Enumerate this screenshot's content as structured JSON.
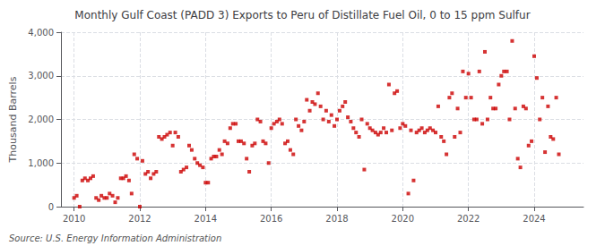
{
  "chart_data": {
    "type": "scatter",
    "title": "Monthly Gulf Coast (PADD 3) Exports to Peru of Distillate Fuel Oil, 0 to 15 ppm Sulfur",
    "ylabel": "Thousand Barrels",
    "annotations": [
      "Source: U.S. Energy Information Administration"
    ],
    "color": "#cc0000",
    "marker": "square",
    "grid": true,
    "xlim": [
      2009.6,
      2025.5
    ],
    "xticks": [
      2010,
      2012,
      2014,
      2016,
      2018,
      2020,
      2022,
      2024
    ],
    "ylim": [
      0,
      4000
    ],
    "yticks": [
      0,
      {
        "value": 1000,
        "label": "1,000"
      },
      {
        "value": 2000,
        "label": "2,000"
      },
      {
        "value": 3000,
        "label": "3,000"
      },
      {
        "value": 4000,
        "label": "4,000"
      }
    ],
    "x": [
      2010.0,
      2010.08,
      2010.17,
      2010.25,
      2010.33,
      2010.42,
      2010.5,
      2010.58,
      2010.67,
      2010.75,
      2010.83,
      2010.92,
      2011.0,
      2011.08,
      2011.17,
      2011.25,
      2011.33,
      2011.42,
      2011.5,
      2011.58,
      2011.67,
      2011.75,
      2011.83,
      2011.92,
      2012.0,
      2012.08,
      2012.17,
      2012.25,
      2012.33,
      2012.42,
      2012.5,
      2012.58,
      2012.67,
      2012.75,
      2012.83,
      2012.92,
      2013.0,
      2013.08,
      2013.17,
      2013.25,
      2013.33,
      2013.42,
      2013.5,
      2013.58,
      2013.67,
      2013.75,
      2013.83,
      2013.92,
      2014.0,
      2014.08,
      2014.17,
      2014.25,
      2014.33,
      2014.42,
      2014.5,
      2014.58,
      2014.67,
      2014.75,
      2014.83,
      2014.92,
      2015.0,
      2015.08,
      2015.17,
      2015.25,
      2015.33,
      2015.42,
      2015.5,
      2015.58,
      2015.67,
      2015.75,
      2015.83,
      2015.92,
      2016.0,
      2016.08,
      2016.17,
      2016.25,
      2016.33,
      2016.42,
      2016.5,
      2016.58,
      2016.67,
      2016.75,
      2016.83,
      2016.92,
      2017.0,
      2017.08,
      2017.17,
      2017.25,
      2017.33,
      2017.42,
      2017.5,
      2017.58,
      2017.67,
      2017.75,
      2017.83,
      2017.92,
      2018.0,
      2018.08,
      2018.17,
      2018.25,
      2018.33,
      2018.42,
      2018.5,
      2018.58,
      2018.67,
      2018.75,
      2018.83,
      2018.92,
      2019.0,
      2019.08,
      2019.17,
      2019.25,
      2019.33,
      2019.42,
      2019.5,
      2019.58,
      2019.67,
      2019.75,
      2019.83,
      2019.92,
      2020.0,
      2020.08,
      2020.17,
      2020.25,
      2020.33,
      2020.42,
      2020.5,
      2020.58,
      2020.67,
      2020.75,
      2020.83,
      2020.92,
      2021.0,
      2021.08,
      2021.17,
      2021.25,
      2021.33,
      2021.42,
      2021.5,
      2021.58,
      2021.67,
      2021.75,
      2021.83,
      2021.92,
      2022.0,
      2022.08,
      2022.17,
      2022.25,
      2022.33,
      2022.42,
      2022.5,
      2022.58,
      2022.67,
      2022.75,
      2022.83,
      2022.92,
      2023.0,
      2023.08,
      2023.17,
      2023.25,
      2023.33,
      2023.42,
      2023.5,
      2023.58,
      2023.67,
      2023.75,
      2023.83,
      2023.92,
      2024.0,
      2024.08,
      2024.17,
      2024.25,
      2024.33,
      2024.42,
      2024.5,
      2024.58,
      2024.67,
      2024.75
    ],
    "values": [
      200,
      250,
      0,
      600,
      650,
      600,
      650,
      700,
      200,
      150,
      250,
      200,
      200,
      300,
      250,
      100,
      200,
      650,
      650,
      700,
      600,
      300,
      1200,
      1100,
      0,
      1050,
      750,
      800,
      650,
      750,
      800,
      1600,
      1550,
      1600,
      1650,
      1700,
      1400,
      1700,
      1600,
      800,
      850,
      900,
      1400,
      1300,
      1100,
      1000,
      950,
      900,
      550,
      550,
      1100,
      1150,
      1150,
      1300,
      1200,
      1500,
      1450,
      1800,
      1900,
      1900,
      1500,
      1500,
      1450,
      1100,
      800,
      1400,
      1450,
      2000,
      1950,
      1500,
      1450,
      1000,
      1800,
      1900,
      1950,
      2000,
      1900,
      1450,
      1500,
      1300,
      1200,
      2000,
      1850,
      1750,
      1950,
      2450,
      2200,
      2400,
      2350,
      2600,
      2300,
      2000,
      2200,
      1950,
      2100,
      1850,
      2000,
      2200,
      2300,
      2400,
      2050,
      1950,
      1800,
      1700,
      1600,
      2000,
      850,
      1900,
      1800,
      1750,
      1700,
      1650,
      1700,
      1800,
      1700,
      2800,
      1750,
      2600,
      2650,
      1800,
      1900,
      1850,
      300,
      1750,
      600,
      1700,
      1750,
      1800,
      1700,
      1750,
      1800,
      1750,
      1700,
      2300,
      1600,
      1500,
      1200,
      2500,
      2600,
      1600,
      2250,
      1700,
      3100,
      2500,
      3050,
      2500,
      2000,
      2000,
      3100,
      1900,
      3550,
      2000,
      2500,
      2250,
      2250,
      2800,
      3000,
      3100,
      3100,
      2000,
      3800,
      2250,
      1100,
      900,
      2300,
      2250,
      1400,
      1500,
      3450,
      2950,
      2000,
      2500,
      1250,
      2300,
      1600,
      1550,
      2500,
      1200
    ]
  }
}
